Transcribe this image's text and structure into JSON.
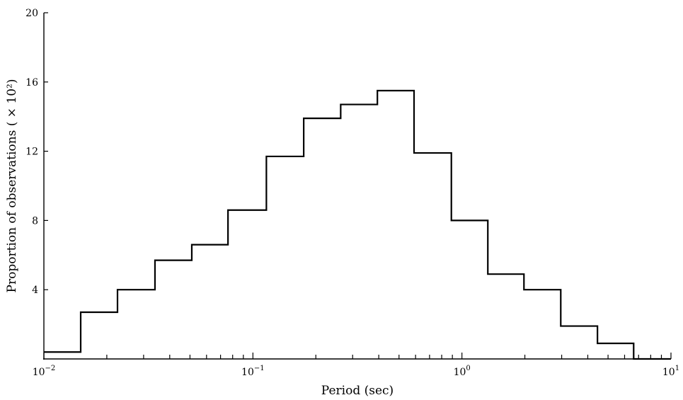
{
  "chart_data": {
    "type": "histogram",
    "xlabel": "Period (sec)",
    "ylabel": "Proportion of observations ( × 10²)",
    "x_scale": "log",
    "xlim": [
      0.01,
      10
    ],
    "ylim": [
      0,
      20
    ],
    "y_ticks": [
      4,
      8,
      12,
      16,
      20
    ],
    "x_ticks": [
      {
        "value": 0.01,
        "base": "10",
        "exp": "−2"
      },
      {
        "value": 0.1,
        "base": "10",
        "exp": "−1"
      },
      {
        "value": 1,
        "base": "10",
        "exp": "0"
      },
      {
        "value": 10,
        "base": "10",
        "exp": "1"
      }
    ],
    "bins": [
      {
        "x0": 0.01,
        "x1": 0.015,
        "value": 0.4
      },
      {
        "x0": 0.015,
        "x1": 0.0225,
        "value": 2.7
      },
      {
        "x0": 0.0225,
        "x1": 0.034,
        "value": 4.0
      },
      {
        "x0": 0.034,
        "x1": 0.051,
        "value": 5.7
      },
      {
        "x0": 0.051,
        "x1": 0.076,
        "value": 6.6
      },
      {
        "x0": 0.076,
        "x1": 0.116,
        "value": 8.6
      },
      {
        "x0": 0.116,
        "x1": 0.175,
        "value": 11.7
      },
      {
        "x0": 0.175,
        "x1": 0.263,
        "value": 13.9
      },
      {
        "x0": 0.263,
        "x1": 0.394,
        "value": 14.7
      },
      {
        "x0": 0.394,
        "x1": 0.59,
        "value": 15.5
      },
      {
        "x0": 0.59,
        "x1": 0.89,
        "value": 11.9
      },
      {
        "x0": 0.89,
        "x1": 1.33,
        "value": 8.0
      },
      {
        "x0": 1.33,
        "x1": 1.98,
        "value": 4.9
      },
      {
        "x0": 1.98,
        "x1": 2.97,
        "value": 4.0
      },
      {
        "x0": 2.97,
        "x1": 4.45,
        "value": 1.9
      },
      {
        "x0": 4.45,
        "x1": 6.63,
        "value": 0.9
      },
      {
        "x0": 6.63,
        "x1": 10,
        "value": 0
      }
    ],
    "grid": false,
    "legend": "none"
  }
}
